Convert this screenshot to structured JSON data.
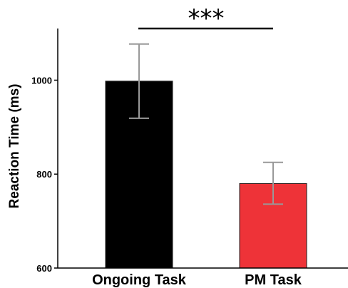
{
  "chart_data": {
    "type": "bar",
    "categories": [
      "Ongoing Task",
      "PM Task"
    ],
    "values": [
      998,
      780
    ],
    "error": [
      {
        "low": 919,
        "high": 1077
      },
      {
        "low": 736,
        "high": 825
      }
    ],
    "bar_colors": [
      "#000000",
      "#ee3338"
    ],
    "error_bar_color": "#999999",
    "title": "",
    "xlabel": "",
    "ylabel": "Reaction Time (ms)",
    "ylim": [
      600,
      1110
    ],
    "yticks": [
      600,
      800,
      1000
    ],
    "grid": false,
    "significance": {
      "label": "***",
      "between": [
        0,
        1
      ]
    }
  }
}
